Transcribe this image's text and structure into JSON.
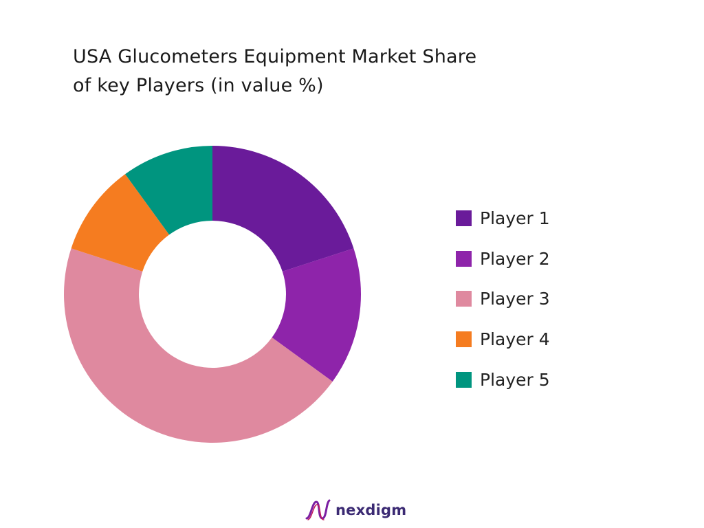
{
  "chart_data": {
    "type": "pie",
    "title_lines": [
      "USA Glucometers Equipment Market Share",
      "of key Players (in value %)"
    ],
    "categories": [
      "Player 1",
      "Player 2",
      "Player 3",
      "Player 4",
      "Player 5"
    ],
    "values": [
      20,
      15,
      45,
      10,
      10
    ],
    "colors": [
      "#6a1b9a",
      "#8e24aa",
      "#df899f",
      "#f57c20",
      "#00957f"
    ],
    "legend_position": "right"
  },
  "brand": {
    "name": "nexdigm",
    "logo_icon": "nexdigm-wave-logo"
  }
}
